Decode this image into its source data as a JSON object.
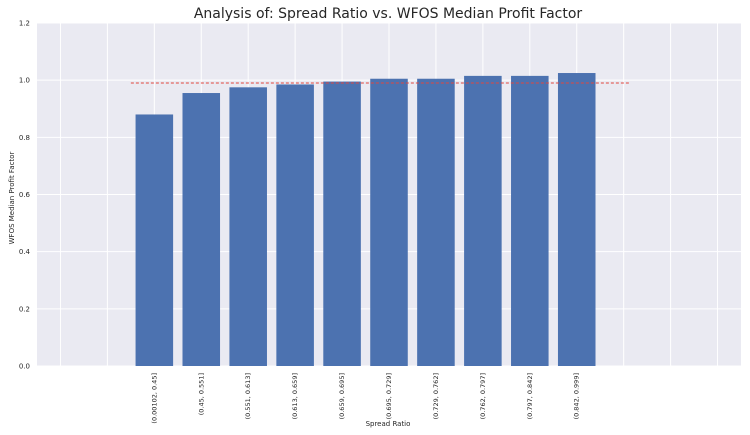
{
  "chart_data": {
    "type": "bar",
    "title": "Analysis of: Spread Ratio vs. WFOS Median Profit Factor",
    "xlabel": "Spread Ratio",
    "ylabel": "WFOS Median Profit Factor",
    "categories": [
      "(0.00102, 0.45]",
      "(0.45, 0.551]",
      "(0.551, 0.613]",
      "(0.613, 0.659]",
      "(0.659, 0.695]",
      "(0.695, 0.729]",
      "(0.729, 0.762]",
      "(0.762, 0.797]",
      "(0.797, 0.842]",
      "(0.842, 0.999]"
    ],
    "values": [
      0.88,
      0.955,
      0.975,
      0.985,
      0.995,
      1.005,
      1.005,
      1.015,
      1.015,
      1.025
    ],
    "ylim": [
      0,
      1.2
    ],
    "yticks": [
      "0.0",
      "0.2",
      "0.4",
      "0.6",
      "0.8",
      "1.0",
      "1.2"
    ],
    "reference_line": {
      "value": 0.99,
      "style": "dashed",
      "color": "#e0463f"
    },
    "bar_color": "#4c72b0",
    "background_color": "#eaeaf2",
    "grid": true
  }
}
